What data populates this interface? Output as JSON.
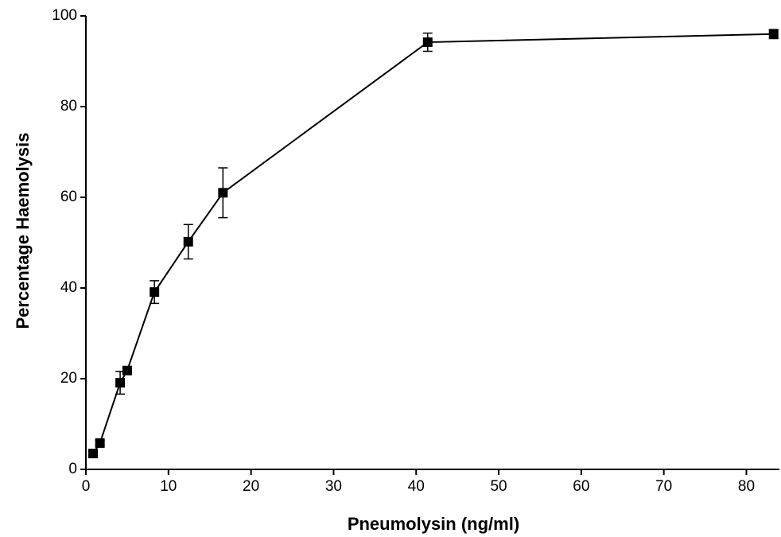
{
  "chart_data": {
    "type": "line",
    "x_label": "Pneumolysin (ng/ml)",
    "y_label": "Percentage Haemolysis",
    "x": [
      0.87,
      1.7,
      4.15,
      5.0,
      8.3,
      12.4,
      16.6,
      41.4,
      83.3
    ],
    "values": [
      3.5,
      5.8,
      19.1,
      21.8,
      39.1,
      50.2,
      61.0,
      94.2,
      96.0
    ],
    "errors": [
      0.5,
      0.6,
      2.5,
      0.5,
      2.5,
      3.8,
      5.5,
      2.0,
      1.0
    ],
    "color": "#000000",
    "xlim": [
      0,
      84
    ],
    "xticks": [
      0,
      10,
      20,
      30,
      40,
      50,
      60,
      70,
      80
    ],
    "ylim": [
      0,
      100
    ],
    "yticks": [
      0,
      20,
      40,
      60,
      80,
      100
    ]
  }
}
